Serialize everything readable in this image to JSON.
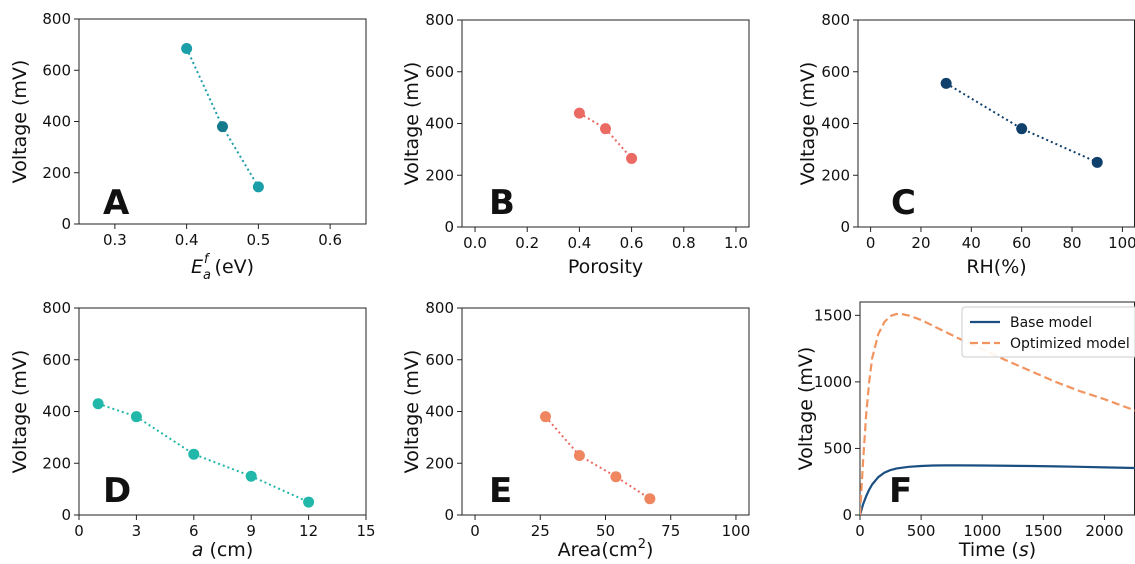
{
  "colors": {
    "teal_dark": "#137a8c",
    "teal_mid": "#1a9ea8",
    "coral": "#ec6a64",
    "navy": "#0f3f6b",
    "teal_bright": "#21b7a9",
    "salmon": "#ef8660",
    "orange_dashed": "#f19460",
    "base_line": "#1b4f82"
  },
  "chart_data": [
    {
      "id": "A",
      "letter": "A",
      "type": "scatter",
      "x": [
        0.4,
        0.45,
        0.5
      ],
      "y": [
        685,
        380,
        145
      ],
      "xlabel_main": "E",
      "xlabel_sub": "a",
      "xlabel_sup": "f",
      "xlabel_rest": " (eV)",
      "ylabel": "Voltage (mV)",
      "xlim": [
        0.25,
        0.65
      ],
      "ylim": [
        0,
        800
      ],
      "xticks": [
        0.3,
        0.4,
        0.5,
        0.6
      ],
      "xtick_labels": [
        "0.3",
        "0.4",
        "0.5",
        "0.6"
      ],
      "yticks": [
        0,
        200,
        400,
        600,
        800
      ],
      "ytick_labels": [
        "0",
        "200",
        "400",
        "600",
        "800"
      ],
      "point_colors": [
        "#1a9ea8",
        "#137a8c",
        "#1a9ea8"
      ],
      "line_color": "#1a9ea8",
      "grid": false
    },
    {
      "id": "B",
      "letter": "B",
      "type": "scatter",
      "x": [
        0.4,
        0.5,
        0.6
      ],
      "y": [
        440,
        380,
        265
      ],
      "xlabel": "Porosity",
      "ylabel": "Voltage (mV)",
      "xlim": [
        -0.05,
        1.05
      ],
      "ylim": [
        0,
        800
      ],
      "xticks": [
        0.0,
        0.2,
        0.4,
        0.6,
        0.8,
        1.0
      ],
      "xtick_labels": [
        "0.0",
        "0.2",
        "0.4",
        "0.6",
        "0.8",
        "1.0"
      ],
      "yticks": [
        0,
        200,
        400,
        600,
        800
      ],
      "ytick_labels": [
        "0",
        "200",
        "400",
        "600",
        "800"
      ],
      "point_colors": [
        "#ec6a64",
        "#ec6a64",
        "#ec6a64"
      ],
      "line_color": "#ec6a64",
      "grid": false
    },
    {
      "id": "C",
      "letter": "C",
      "type": "scatter",
      "x": [
        30,
        60,
        90
      ],
      "y": [
        555,
        380,
        250
      ],
      "xlabel": "RH(%)",
      "ylabel": "Voltage (mV)",
      "xlim": [
        -5,
        105
      ],
      "ylim": [
        0,
        800
      ],
      "xticks": [
        0,
        20,
        40,
        60,
        80,
        100
      ],
      "xtick_labels": [
        "0",
        "20",
        "40",
        "60",
        "80",
        "100"
      ],
      "yticks": [
        0,
        200,
        400,
        600,
        800
      ],
      "ytick_labels": [
        "0",
        "200",
        "400",
        "600",
        "800"
      ],
      "point_colors": [
        "#0f3f6b",
        "#0f3f6b",
        "#0f3f6b"
      ],
      "line_color": "#0f3f6b",
      "grid": false
    },
    {
      "id": "D",
      "letter": "D",
      "type": "scatter",
      "x": [
        1,
        3,
        6,
        9,
        12
      ],
      "y": [
        430,
        380,
        235,
        150,
        50
      ],
      "xlabel_main": "a",
      "xlabel_rest": " (cm)",
      "ylabel": "Voltage (mV)",
      "xlim": [
        0,
        15
      ],
      "ylim": [
        0,
        800
      ],
      "xticks": [
        0,
        3,
        6,
        9,
        12,
        15
      ],
      "xtick_labels": [
        "0",
        "3",
        "6",
        "9",
        "12",
        "15"
      ],
      "yticks": [
        0,
        200,
        400,
        600,
        800
      ],
      "ytick_labels": [
        "0",
        "200",
        "400",
        "600",
        "800"
      ],
      "point_colors": [
        "#21b7a9",
        "#21b7a9",
        "#21b7a9",
        "#21b7a9",
        "#21b7a9"
      ],
      "line_color": "#21b7a9",
      "grid": false
    },
    {
      "id": "E",
      "letter": "E",
      "type": "scatter",
      "x": [
        27,
        40,
        54,
        67
      ],
      "y": [
        380,
        230,
        148,
        63
      ],
      "xlabel_main": "Area(cm",
      "xlabel_sup": "2",
      "xlabel_rest": ")",
      "ylabel": "Voltage (mV)",
      "xlim": [
        -5,
        105
      ],
      "ylim": [
        0,
        800
      ],
      "xticks": [
        0,
        25,
        50,
        75,
        100
      ],
      "xtick_labels": [
        "0",
        "25",
        "50",
        "75",
        "100"
      ],
      "yticks": [
        0,
        200,
        400,
        600,
        800
      ],
      "ytick_labels": [
        "0",
        "200",
        "400",
        "600",
        "800"
      ],
      "point_colors": [
        "#ef8660",
        "#ef8660",
        "#ef8660",
        "#ef8660"
      ],
      "line_color": "#ec6a64",
      "grid": false
    },
    {
      "id": "F",
      "letter": "F",
      "type": "line",
      "xlabel_main": "Time (",
      "xlabel_italic": "s",
      "xlabel_rest": ")",
      "ylabel": "Voltage (mV)",
      "xlim": [
        0,
        2250
      ],
      "ylim": [
        0,
        1600
      ],
      "xticks": [
        0,
        500,
        1000,
        1500,
        2000
      ],
      "xtick_labels": [
        "0",
        "500",
        "1000",
        "1500",
        "2000"
      ],
      "yticks": [
        0,
        500,
        1000,
        1500
      ],
      "ytick_labels": [
        "0",
        "500",
        "1000",
        "1500"
      ],
      "legend_position": "top-right",
      "grid": false,
      "series": [
        {
          "name": "Base model",
          "style": "solid",
          "color": "#1b4f82",
          "x": [
            0,
            25,
            50,
            75,
            100,
            150,
            200,
            250,
            300,
            400,
            500,
            600,
            700,
            800,
            1000,
            1200,
            1400,
            1600,
            1800,
            2000,
            2250
          ],
          "y": [
            0,
            80,
            140,
            190,
            230,
            285,
            318,
            338,
            350,
            362,
            368,
            372,
            373,
            373,
            372,
            370,
            368,
            365,
            362,
            358,
            353
          ]
        },
        {
          "name": "Optimized model",
          "style": "dashed",
          "color": "#f19460",
          "x": [
            0,
            25,
            50,
            75,
            100,
            150,
            200,
            250,
            300,
            350,
            400,
            500,
            600,
            700,
            800,
            1000,
            1200,
            1400,
            1600,
            1800,
            2000,
            2250
          ],
          "y": [
            0,
            400,
            750,
            1000,
            1180,
            1360,
            1450,
            1495,
            1510,
            1508,
            1498,
            1465,
            1420,
            1375,
            1330,
            1245,
            1160,
            1080,
            1000,
            930,
            870,
            785
          ]
        }
      ]
    }
  ]
}
